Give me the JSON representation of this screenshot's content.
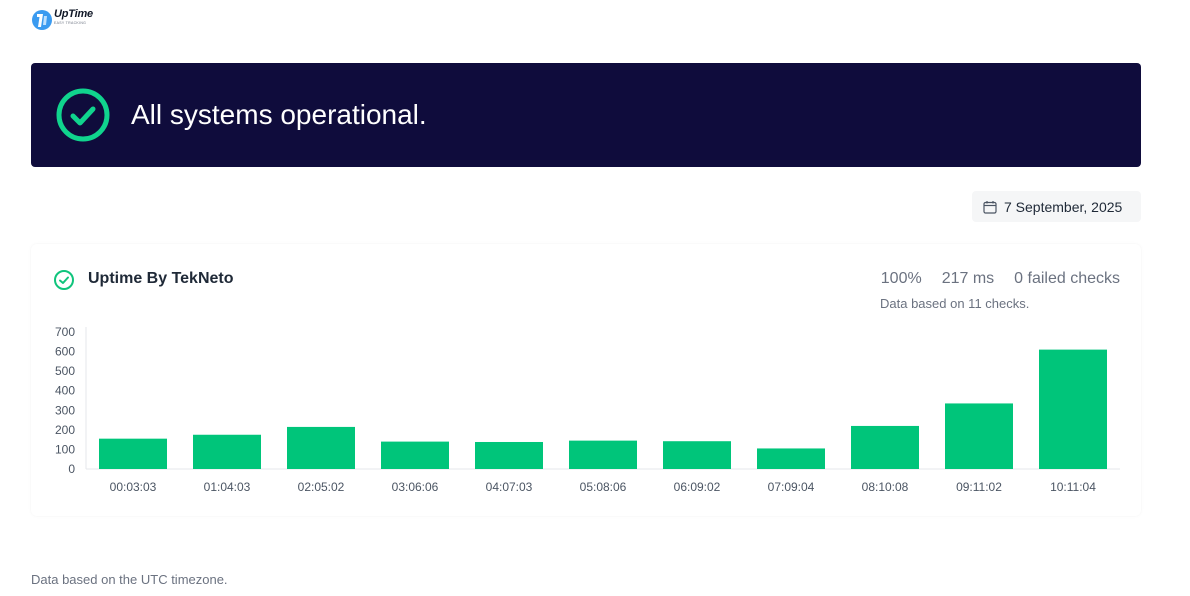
{
  "logo": {
    "title": "UpTime",
    "subtitle": "EASY TRACKING",
    "icon": "uptime-logo-icon"
  },
  "banner": {
    "title": "All systems operational.",
    "icon": "check-circle-icon",
    "background": "#0f0c3c",
    "accent": "#10d48e"
  },
  "date_picker": {
    "value": "7 September, 2025",
    "icon": "calendar-icon"
  },
  "monitor": {
    "name": "Uptime By TekNeto",
    "icon": "check-circle-icon",
    "uptime": "100%",
    "response_time": "217 ms",
    "failed_checks": "0 failed checks",
    "note": "Data based on 11 checks."
  },
  "chart_data": {
    "type": "bar",
    "title": "",
    "xlabel": "",
    "ylabel": "",
    "categories": [
      "00:03:03",
      "01:04:03",
      "02:05:02",
      "03:06:06",
      "04:07:03",
      "05:08:06",
      "06:09:02",
      "07:09:04",
      "08:10:08",
      "09:11:02",
      "10:11:04"
    ],
    "values": [
      155,
      175,
      215,
      140,
      138,
      145,
      142,
      105,
      220,
      335,
      610
    ],
    "ylim": [
      0,
      700
    ],
    "yticks": [
      0,
      100,
      200,
      300,
      400,
      500,
      600,
      700
    ],
    "color": "#00c57a",
    "grid": false
  },
  "footer": {
    "note": "Data based on the UTC timezone."
  }
}
